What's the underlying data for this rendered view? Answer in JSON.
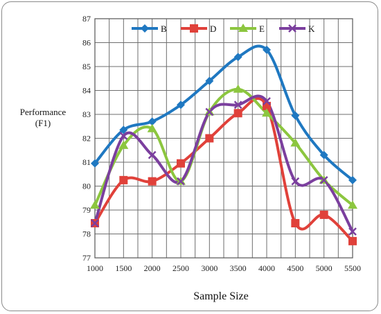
{
  "chart_data": {
    "type": "line",
    "title": "",
    "xlabel": "Sample Size",
    "ylabel": "Performance\n(F1)",
    "x": [
      1000,
      1500,
      2000,
      2500,
      3000,
      3500,
      4000,
      4500,
      5000,
      5500
    ],
    "xlim": [
      1000,
      5500
    ],
    "ylim": [
      77,
      87
    ],
    "yticks": [
      77,
      78,
      79,
      80,
      81,
      82,
      83,
      84,
      85,
      86,
      87
    ],
    "grid": true,
    "legend_position": "top-center",
    "series": [
      {
        "name": "B",
        "color": "#1f78c1",
        "marker": "diamond",
        "values": [
          80.95,
          82.35,
          82.7,
          83.4,
          84.4,
          85.4,
          85.7,
          82.95,
          81.3,
          80.25
        ]
      },
      {
        "name": "D",
        "color": "#e0413a",
        "marker": "square",
        "values": [
          78.45,
          80.25,
          80.2,
          80.95,
          82.0,
          83.05,
          83.35,
          78.45,
          78.8,
          77.7
        ]
      },
      {
        "name": "E",
        "color": "#8cc63f",
        "marker": "triangle",
        "values": [
          79.2,
          81.7,
          82.4,
          80.2,
          83.1,
          84.05,
          83.05,
          81.8,
          80.25,
          79.2
        ]
      },
      {
        "name": "K",
        "color": "#7b3f9e",
        "marker": "x",
        "values": [
          78.45,
          82.1,
          81.3,
          80.2,
          83.1,
          83.4,
          83.55,
          80.2,
          80.25,
          78.1
        ]
      }
    ]
  }
}
